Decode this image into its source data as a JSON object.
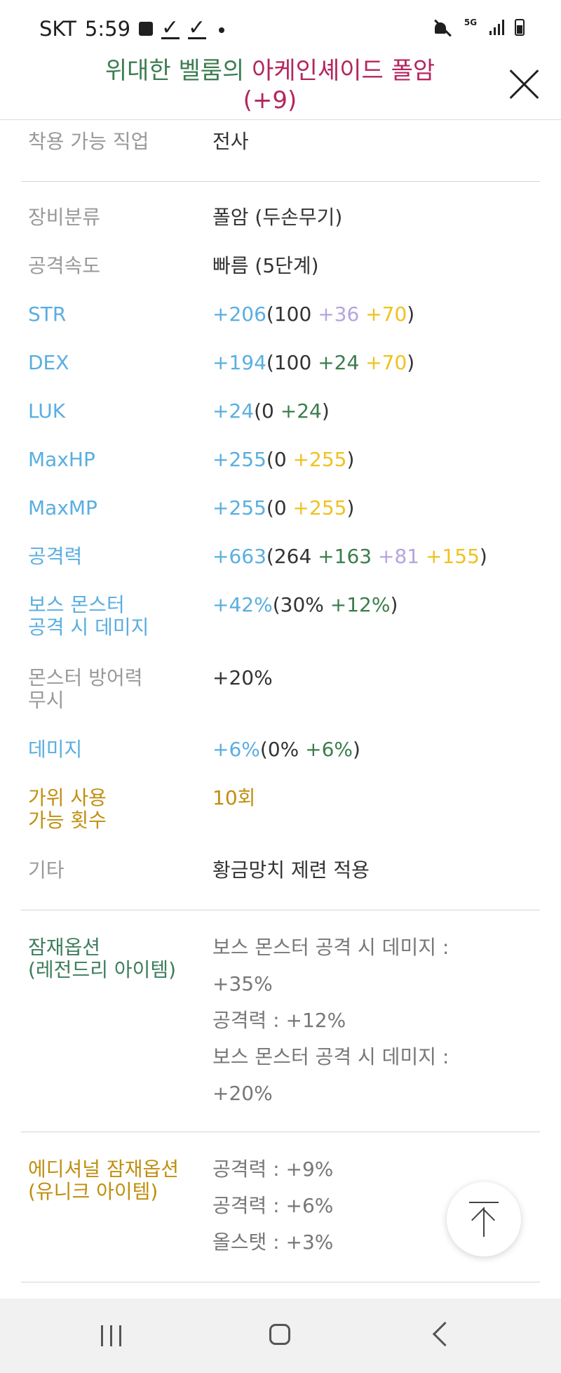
{
  "status_bar": {
    "carrier": "SKT",
    "time": "5:59",
    "network": "5G"
  },
  "header": {
    "title_part1": "위대한 벨룸의 ",
    "title_part2": "아케인셰이드 폴암",
    "title_part3": "(+9)"
  },
  "rows": {
    "job": {
      "label": "착용 가능 직업",
      "value": "전사"
    },
    "category": {
      "label": "장비분류",
      "value": "폴암 (두손무기)"
    },
    "speed": {
      "label": "공격속도",
      "value": "빠름 (5단계)"
    },
    "str": {
      "label": "STR",
      "total": "+206",
      "open": "(100 ",
      "a": "+36",
      "sp1": " ",
      "b": "+70",
      "close": ")"
    },
    "dex": {
      "label": "DEX",
      "total": "+194",
      "open": "(100 ",
      "a": "+24",
      "sp1": " ",
      "b": "+70",
      "close": ")"
    },
    "luk": {
      "label": "LUK",
      "total": "+24",
      "open": "(0 ",
      "a": "+24",
      "close": ")"
    },
    "maxhp": {
      "label": "MaxHP",
      "total": "+255",
      "open": "(0 ",
      "b": "+255",
      "close": ")"
    },
    "maxmp": {
      "label": "MaxMP",
      "total": "+255",
      "open": "(0 ",
      "b": "+255",
      "close": ")"
    },
    "attack": {
      "label": "공격력",
      "total": "+663",
      "open": "(264 ",
      "a": "+163",
      "sp1": " ",
      "c": "+81",
      "sp2": " ",
      "b": "+155",
      "close": ")"
    },
    "boss": {
      "label_line1": "보스 몬스터",
      "label_line2": "공격 시 데미지",
      "total": "+42%",
      "open": "(30% ",
      "a": "+12%",
      "close": ")"
    },
    "ignore_def": {
      "label_line1": "몬스터 방어력",
      "label_line2": "무시",
      "value": "+20%"
    },
    "damage": {
      "label": "데미지",
      "total": "+6%",
      "open": "(0% ",
      "a": "+6%",
      "close": ")"
    },
    "scissors": {
      "label_line1": "가위 사용",
      "label_line2": "가능 횟수",
      "value": "10회"
    },
    "etc": {
      "label": "기타",
      "value": "황금망치 제련 적용"
    }
  },
  "potential": {
    "label_line1": "잠재옵션",
    "label_line2": "(레전드리 아이템)",
    "lines": [
      "보스 몬스터 공격 시 데미지 :",
      "+35%",
      "공격력 : +12%",
      "보스 몬스터 공격 시 데미지 :",
      "+20%"
    ]
  },
  "additional": {
    "label_line1": "에디셔널 잠재옵션",
    "label_line2": "(유니크 아이템)",
    "lines": [
      "공격력 : +9%",
      "공격력 : +6%",
      "올스탯 : +3%"
    ]
  },
  "colors": {
    "label_gray": "#999999",
    "label_blue": "#5aaee0",
    "label_gold": "#c08f10",
    "bonus_green": "#3b7d4c",
    "bonus_purple": "#b5a4e0",
    "bonus_yellow": "#efc21f",
    "title_green": "#3e7d52",
    "title_pink": "#b3265e"
  },
  "icons": [
    "gallery-icon",
    "check-icon",
    "mute-icon",
    "signal-icon",
    "battery-icon",
    "close-icon",
    "arrow-up-icon",
    "recents-icon",
    "home-icon",
    "back-icon"
  ]
}
